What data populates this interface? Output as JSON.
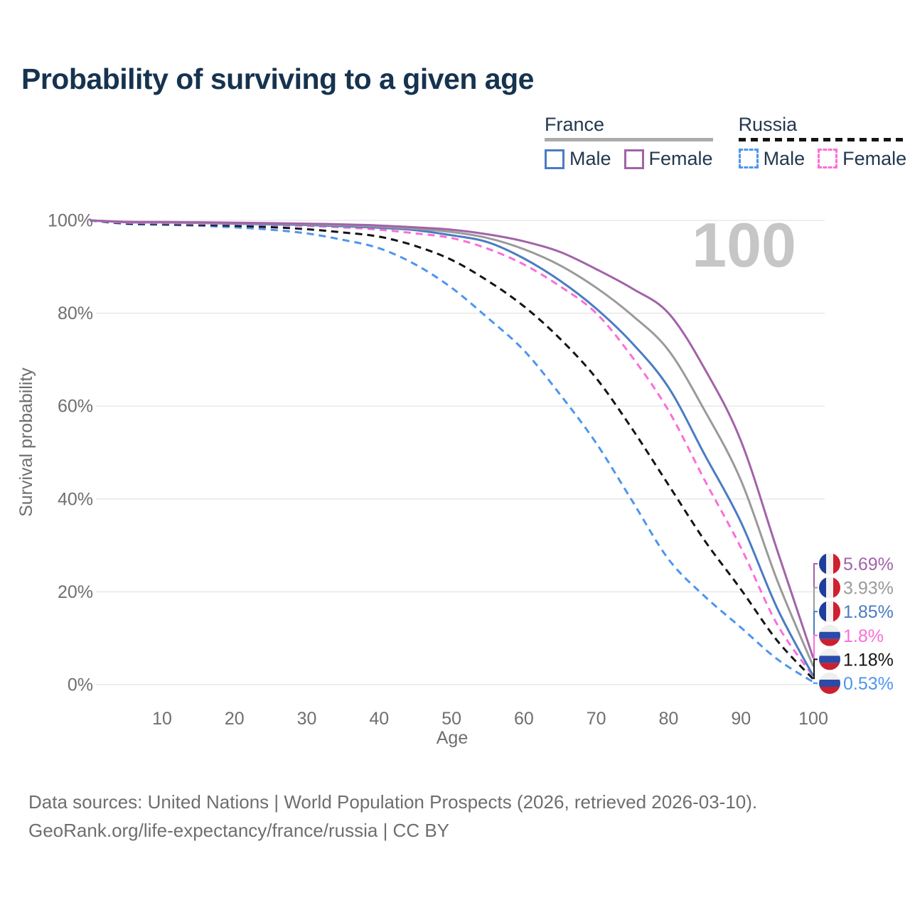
{
  "title": "Probability of surviving to a given age",
  "legend": {
    "groups": [
      {
        "label": "France",
        "underline_style": "solid",
        "underline_color": "#ABABAB",
        "items": [
          {
            "label": "Male",
            "color": "#4A7CC2",
            "dash": false
          },
          {
            "label": "Female",
            "color": "#A263A8",
            "dash": false
          }
        ]
      },
      {
        "label": "Russia",
        "underline_style": "dashed",
        "underline_color": "#141414",
        "items": [
          {
            "label": "Male",
            "color": "#4D95EE",
            "dash": true
          },
          {
            "label": "Female",
            "color": "#FB6ED8",
            "dash": true
          }
        ]
      }
    ]
  },
  "chart_data": {
    "type": "line",
    "title": "Probability of surviving to a given age",
    "xlabel": "Age",
    "ylabel": "Survival probability",
    "watermark": "100",
    "xlim": [
      0,
      100
    ],
    "ylim": [
      0,
      100
    ],
    "grid": "horizontal",
    "x_ticks": {
      "values": [
        10,
        20,
        30,
        40,
        50,
        60,
        70,
        80,
        90,
        100
      ],
      "labels": [
        "10",
        "20",
        "30",
        "40",
        "50",
        "60",
        "70",
        "80",
        "90",
        "100"
      ]
    },
    "y_ticks": {
      "values": [
        0,
        20,
        40,
        60,
        80,
        100
      ],
      "labels": [
        "0%",
        "20%",
        "40%",
        "60%",
        "80%",
        "100%"
      ]
    },
    "x": [
      0,
      5,
      10,
      15,
      20,
      25,
      30,
      35,
      40,
      45,
      50,
      55,
      60,
      65,
      70,
      75,
      80,
      85,
      90,
      95,
      100
    ],
    "series": [
      {
        "name": "France Female",
        "country": "France",
        "sex": "Female",
        "flag": "france",
        "line_style": "solid",
        "color": "#A263A8",
        "end_label": "5.69%",
        "values": [
          100,
          99.7,
          99.65,
          99.6,
          99.5,
          99.4,
          99.3,
          99.15,
          98.9,
          98.5,
          98.0,
          97.0,
          95.5,
          93.2,
          89.5,
          85.3,
          80.0,
          68.0,
          52.5,
          29.0,
          5.69
        ]
      },
      {
        "name": "France Both sexes",
        "country": "France",
        "sex": "Both",
        "flag": "france",
        "line_style": "solid",
        "color": "#9A9A9A",
        "end_label": "3.93%",
        "values": [
          100,
          99.65,
          99.6,
          99.5,
          99.4,
          99.3,
          99.15,
          98.95,
          98.65,
          98.2,
          97.5,
          96.2,
          93.8,
          90.3,
          85.5,
          79.5,
          72.0,
          59.0,
          44.0,
          22.5,
          3.93
        ]
      },
      {
        "name": "France Male",
        "country": "France",
        "sex": "Male",
        "flag": "france",
        "line_style": "solid",
        "color": "#4A7CC2",
        "end_label": "1.85%",
        "values": [
          100,
          99.6,
          99.55,
          99.45,
          99.3,
          99.15,
          99.0,
          98.75,
          98.4,
          97.9,
          96.8,
          95.3,
          91.8,
          87.0,
          81.0,
          73.5,
          64.0,
          49.5,
          35.0,
          16.5,
          1.85
        ]
      },
      {
        "name": "Russia Female",
        "country": "Russia",
        "sex": "Female",
        "flag": "russia",
        "line_style": "dashed",
        "color": "#FB6ED8",
        "end_label": "1.8%",
        "values": [
          100,
          99.5,
          99.4,
          99.3,
          99.2,
          99.0,
          98.8,
          98.5,
          98.0,
          97.2,
          96.2,
          93.9,
          90.5,
          85.8,
          80.0,
          70.5,
          59.0,
          44.0,
          29.5,
          13.0,
          1.8
        ]
      },
      {
        "name": "Russia Both sexes",
        "country": "Russia",
        "sex": "Both",
        "flag": "russia",
        "line_style": "dashed",
        "color": "#141414",
        "end_label": "1.18%",
        "values": [
          100,
          99.35,
          99.2,
          99.05,
          98.85,
          98.55,
          98.1,
          97.4,
          96.5,
          94.5,
          91.5,
          87.0,
          81.5,
          74.5,
          66.0,
          55.0,
          43.0,
          31.0,
          20.5,
          9.5,
          1.18
        ]
      },
      {
        "name": "Russia Male",
        "country": "Russia",
        "sex": "Male",
        "flag": "russia",
        "line_style": "dashed",
        "color": "#4D95EE",
        "end_label": "0.53%",
        "values": [
          100,
          99.25,
          99.05,
          98.85,
          98.5,
          98.0,
          97.2,
          95.8,
          94.0,
          90.5,
          85.5,
          79.0,
          72.0,
          62.5,
          52.0,
          39.5,
          27.0,
          19.0,
          12.3,
          5.5,
          0.53
        ]
      }
    ],
    "flag_colors": {
      "france": {
        "blue": "#1E3D9C",
        "white": "#F4F3F1",
        "red": "#CE2031"
      },
      "russia": {
        "white": "#EFEFED",
        "blue": "#2A4BA8",
        "red": "#CB2030"
      }
    }
  },
  "footer": {
    "line1": "Data sources: United Nations | World Population Prospects (2026, retrieved 2026-03-10).",
    "line2": "GeoRank.org/life-expectancy/france/russia | CC BY"
  }
}
